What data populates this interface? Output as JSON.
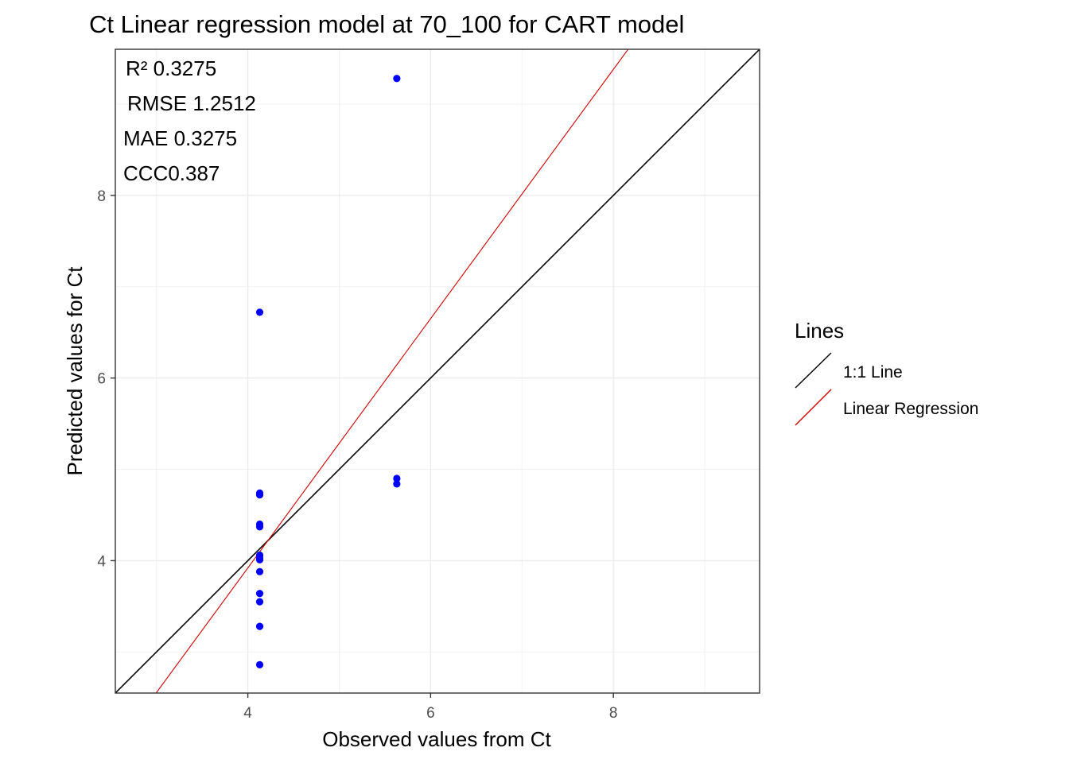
{
  "chart_data": {
    "type": "scatter",
    "title": "Ct  Linear regression model at  70_100  for  CART  model",
    "xlabel": "Observed values from Ct",
    "ylabel": "Predicted values for Ct",
    "xlim": [
      2.55,
      9.6
    ],
    "ylim": [
      2.55,
      9.6
    ],
    "x_ticks": [
      4,
      6,
      8
    ],
    "y_ticks": [
      4,
      6,
      8
    ],
    "grid": true,
    "point_color": "#0000FF",
    "points": [
      {
        "x": 4.13,
        "y": 2.86
      },
      {
        "x": 4.13,
        "y": 3.28
      },
      {
        "x": 4.13,
        "y": 3.55
      },
      {
        "x": 4.13,
        "y": 3.64
      },
      {
        "x": 4.13,
        "y": 3.88
      },
      {
        "x": 4.13,
        "y": 4.01
      },
      {
        "x": 4.13,
        "y": 4.03
      },
      {
        "x": 4.13,
        "y": 4.06
      },
      {
        "x": 4.13,
        "y": 4.37
      },
      {
        "x": 4.13,
        "y": 4.4
      },
      {
        "x": 4.13,
        "y": 4.72
      },
      {
        "x": 4.13,
        "y": 4.74
      },
      {
        "x": 4.13,
        "y": 6.72
      },
      {
        "x": 5.63,
        "y": 4.84
      },
      {
        "x": 5.63,
        "y": 4.9
      },
      {
        "x": 5.63,
        "y": 9.28
      }
    ],
    "lines": [
      {
        "name": "1:1 Line",
        "color": "#000000",
        "slope": 1.0,
        "intercept": 0.0
      },
      {
        "name": "Linear Regression",
        "color": "#CC0000",
        "slope": 1.365,
        "intercept": -1.54
      }
    ],
    "stats": {
      "r2_label": "R²  0.3275",
      "rmse_label": "RMSE 1.2512",
      "mae_label": "MAE  0.3275",
      "ccc_label": "CCC0.387"
    },
    "legend": {
      "title": "Lines",
      "position": "right",
      "items": [
        {
          "label": "1:1 Line",
          "color": "#000000"
        },
        {
          "label": "Linear Regression",
          "color": "#CC0000"
        }
      ]
    }
  }
}
